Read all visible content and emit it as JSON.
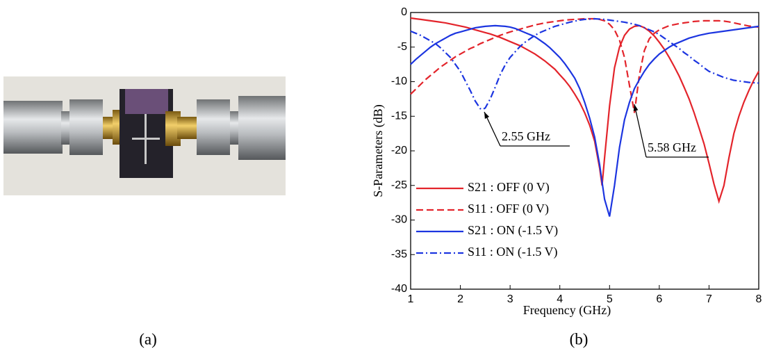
{
  "captions": [
    "(a)",
    "(b)"
  ],
  "chart_data": {
    "type": "line",
    "xlabel": "Frequency (GHz)",
    "ylabel": "S-Parameters (dB)",
    "xlim": [
      1,
      8
    ],
    "xticks": [
      1,
      2,
      3,
      4,
      5,
      6,
      7,
      8
    ],
    "ylim": [
      -40,
      0
    ],
    "yticks": [
      0,
      -5,
      -10,
      -15,
      -20,
      -25,
      -30,
      -35,
      -40
    ],
    "legend": "lower left",
    "annotations": [
      "2.55 GHz",
      "5.58 GHz"
    ],
    "x": [
      1.0,
      1.1,
      1.2,
      1.3,
      1.4,
      1.5,
      1.6,
      1.7,
      1.8,
      1.9,
      2.0,
      2.1,
      2.2,
      2.3,
      2.4,
      2.45,
      2.5,
      2.6,
      2.7,
      2.8,
      2.9,
      3.0,
      3.1,
      3.2,
      3.3,
      3.4,
      3.5,
      3.6,
      3.7,
      3.8,
      3.9,
      4.0,
      4.1,
      4.2,
      4.3,
      4.4,
      4.5,
      4.6,
      4.7,
      4.8,
      4.85,
      4.9,
      5.0,
      5.1,
      5.2,
      5.3,
      5.4,
      5.5,
      5.6,
      5.7,
      5.8,
      5.9,
      6.0,
      6.1,
      6.2,
      6.3,
      6.4,
      6.5,
      6.6,
      6.7,
      6.8,
      6.9,
      7.0,
      7.1,
      7.2,
      7.3,
      7.4,
      7.5,
      7.6,
      7.7,
      7.8,
      7.9,
      8.0
    ],
    "series": [
      {
        "name": "S21 : OFF (0 V)",
        "color": "#e3242b",
        "style": "solid",
        "values": [
          -0.8,
          -0.9,
          -1.0,
          -1.1,
          -1.2,
          -1.3,
          -1.4,
          -1.5,
          -1.65,
          -1.8,
          -1.95,
          -2.1,
          -2.3,
          -2.5,
          -2.7,
          -2.8,
          -2.9,
          -3.1,
          -3.35,
          -3.6,
          -3.9,
          -4.2,
          -4.5,
          -4.8,
          -5.2,
          -5.6,
          -6.0,
          -6.5,
          -7.0,
          -7.6,
          -8.2,
          -9.0,
          -9.8,
          -10.7,
          -11.8,
          -13.0,
          -14.5,
          -16.3,
          -18.6,
          -22.5,
          -25.0,
          -21.0,
          -13.5,
          -8.0,
          -5.0,
          -3.3,
          -2.4,
          -2.0,
          -1.9,
          -2.2,
          -2.7,
          -3.4,
          -4.3,
          -5.3,
          -6.5,
          -7.8,
          -9.2,
          -10.8,
          -12.5,
          -14.5,
          -16.7,
          -19.0,
          -21.8,
          -24.8,
          -27.3,
          -25.0,
          -21.0,
          -17.5,
          -15.0,
          -13.0,
          -11.3,
          -9.8,
          -8.5
        ]
      },
      {
        "name": "S11 : OFF (0 V)",
        "color": "#e3242b",
        "style": "dashed",
        "values": [
          -11.8,
          -11.1,
          -10.4,
          -9.7,
          -9.1,
          -8.5,
          -7.9,
          -7.4,
          -6.9,
          -6.4,
          -6.0,
          -5.6,
          -5.2,
          -4.9,
          -4.5,
          -4.35,
          -4.2,
          -3.9,
          -3.6,
          -3.3,
          -3.05,
          -2.8,
          -2.6,
          -2.4,
          -2.2,
          -2.0,
          -1.8,
          -1.65,
          -1.5,
          -1.4,
          -1.3,
          -1.2,
          -1.1,
          -1.05,
          -1.0,
          -0.95,
          -0.9,
          -0.9,
          -0.9,
          -1.0,
          -1.1,
          -1.2,
          -1.7,
          -2.5,
          -4.0,
          -6.5,
          -10.5,
          -14.5,
          -9.0,
          -5.5,
          -3.8,
          -3.0,
          -2.5,
          -2.2,
          -1.9,
          -1.75,
          -1.6,
          -1.5,
          -1.4,
          -1.3,
          -1.25,
          -1.2,
          -1.2,
          -1.2,
          -1.2,
          -1.25,
          -1.35,
          -1.5,
          -1.65,
          -1.8,
          -1.95,
          -2.05,
          -2.1
        ]
      },
      {
        "name": "S21 : ON (-1.5 V)",
        "color": "#1c35e0",
        "style": "solid",
        "values": [
          -7.5,
          -6.8,
          -6.2,
          -5.6,
          -5.0,
          -4.5,
          -4.1,
          -3.7,
          -3.3,
          -3.0,
          -2.8,
          -2.6,
          -2.4,
          -2.2,
          -2.1,
          -2.05,
          -2.0,
          -1.95,
          -1.9,
          -1.95,
          -2.0,
          -2.1,
          -2.3,
          -2.6,
          -2.9,
          -3.2,
          -3.5,
          -4.0,
          -4.5,
          -5.1,
          -5.8,
          -6.5,
          -7.4,
          -8.4,
          -9.5,
          -11.0,
          -13.0,
          -15.3,
          -18.0,
          -22.0,
          -24.5,
          -27.0,
          -29.5,
          -25.0,
          -19.5,
          -15.5,
          -13.0,
          -11.0,
          -9.7,
          -8.5,
          -7.5,
          -6.7,
          -6.0,
          -5.5,
          -5.0,
          -4.6,
          -4.3,
          -4.0,
          -3.7,
          -3.5,
          -3.3,
          -3.15,
          -3.0,
          -2.9,
          -2.8,
          -2.7,
          -2.6,
          -2.5,
          -2.4,
          -2.3,
          -2.2,
          -2.1,
          -2.0
        ]
      },
      {
        "name": "S11 : ON (-1.5 V)",
        "color": "#1c35e0",
        "style": "dashdot",
        "values": [
          -2.7,
          -3.0,
          -3.3,
          -3.7,
          -4.1,
          -4.5,
          -5.1,
          -5.8,
          -6.5,
          -7.5,
          -8.5,
          -9.9,
          -11.3,
          -12.8,
          -13.9,
          -14.0,
          -13.8,
          -12.5,
          -10.8,
          -9.0,
          -7.6,
          -6.5,
          -5.7,
          -4.9,
          -4.3,
          -3.8,
          -3.3,
          -2.9,
          -2.6,
          -2.3,
          -2.0,
          -1.8,
          -1.6,
          -1.4,
          -1.25,
          -1.1,
          -1.0,
          -0.95,
          -0.9,
          -0.95,
          -1.0,
          -1.0,
          -1.1,
          -1.2,
          -1.3,
          -1.4,
          -1.55,
          -1.7,
          -1.9,
          -2.2,
          -2.5,
          -2.8,
          -3.2,
          -3.7,
          -4.2,
          -4.7,
          -5.2,
          -5.8,
          -6.3,
          -6.9,
          -7.4,
          -8.0,
          -8.5,
          -8.8,
          -9.1,
          -9.4,
          -9.6,
          -9.8,
          -9.9,
          -10.0,
          -10.1,
          -10.15,
          -10.2
        ]
      }
    ]
  }
}
